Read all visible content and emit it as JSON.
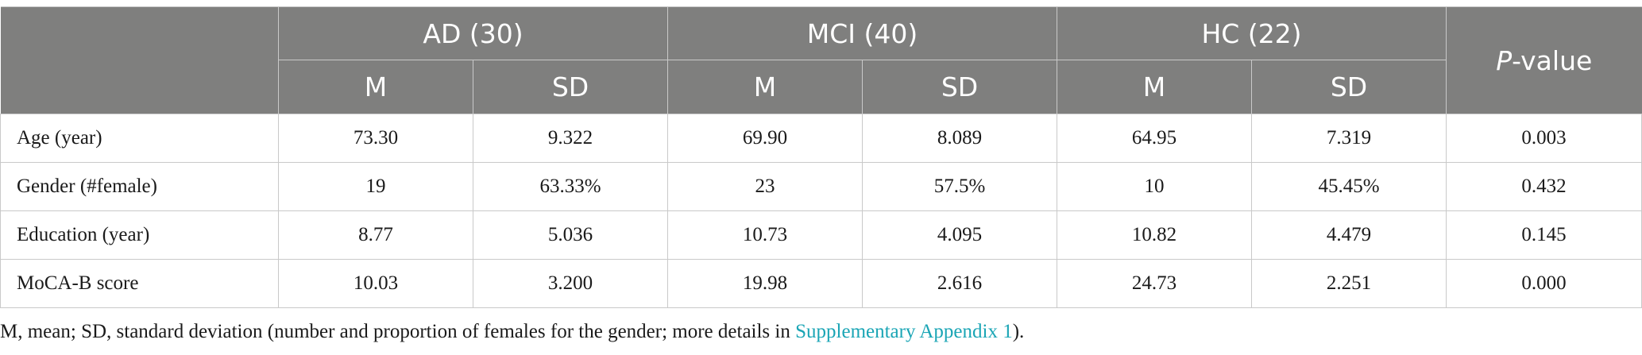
{
  "table": {
    "groups": [
      {
        "label": "AD (30)"
      },
      {
        "label": "MCI (40)"
      },
      {
        "label": "HC (22)"
      }
    ],
    "p_value_header": {
      "italic": "P",
      "rest": "-value"
    },
    "sub_headers": {
      "m": "M",
      "sd": "SD"
    },
    "rows": [
      {
        "label": "Age (year)",
        "ad_m": "73.30",
        "ad_sd": "9.322",
        "mci_m": "69.90",
        "mci_sd": "8.089",
        "hc_m": "64.95",
        "hc_sd": "7.319",
        "p": "0.003"
      },
      {
        "label": "Gender (#female)",
        "ad_m": "19",
        "ad_sd": "63.33%",
        "mci_m": "23",
        "mci_sd": "57.5%",
        "hc_m": "10",
        "hc_sd": "45.45%",
        "p": "0.432"
      },
      {
        "label": "Education (year)",
        "ad_m": "8.77",
        "ad_sd": "5.036",
        "mci_m": "10.73",
        "mci_sd": "4.095",
        "hc_m": "10.82",
        "hc_sd": "4.479",
        "p": "0.145"
      },
      {
        "label": "MoCA-B score",
        "ad_m": "10.03",
        "ad_sd": "3.200",
        "mci_m": "19.98",
        "mci_sd": "2.616",
        "hc_m": "24.73",
        "hc_sd": "2.251",
        "p": "0.000"
      }
    ]
  },
  "footnote": {
    "prefix": "M, mean; SD, standard deviation (number and proportion of females for the gender; more details in ",
    "link": "Supplementary Appendix 1",
    "suffix": ")."
  },
  "colors": {
    "header_bg": "#7f7f7e",
    "header_text": "#ffffff",
    "link": "#1aa5b5",
    "border": "#c9c9c9"
  }
}
